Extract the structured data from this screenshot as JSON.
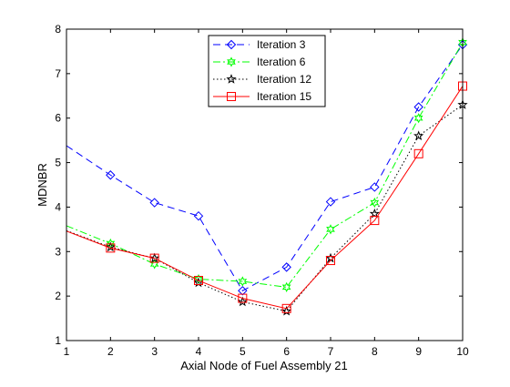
{
  "chart_data": {
    "type": "line",
    "title": "",
    "xlabel": "Axial Node of Fuel Assembly 21",
    "ylabel": "MDNBR",
    "xlim": [
      1,
      10
    ],
    "ylim": [
      1,
      8
    ],
    "xticks": [
      "1",
      "2",
      "3",
      "4",
      "5",
      "6",
      "7",
      "8",
      "9",
      "10"
    ],
    "yticks": [
      "1",
      "2",
      "3",
      "4",
      "5",
      "6",
      "7",
      "8"
    ],
    "grid": false,
    "legend_position": "top-center",
    "x": [
      1,
      2,
      3,
      4,
      5,
      6,
      7,
      8,
      9,
      10
    ],
    "series": [
      {
        "name": "Iteration 3",
        "values": [
          5.38,
          4.72,
          4.1,
          3.8,
          2.12,
          2.65,
          4.12,
          4.45,
          6.25,
          7.65
        ],
        "color": "#0000ff",
        "line_style": "dashed",
        "marker": "diamond",
        "marker_from": 1
      },
      {
        "name": "Iteration 6",
        "values": [
          3.58,
          3.18,
          2.72,
          2.38,
          2.33,
          2.2,
          3.5,
          4.1,
          6.0,
          7.7
        ],
        "color": "#00ff00",
        "line_style": "dash-dot",
        "marker": "hexagram",
        "marker_from": 1
      },
      {
        "name": "Iteration 12",
        "values": [
          3.47,
          3.1,
          2.85,
          2.3,
          1.87,
          1.66,
          2.85,
          3.85,
          5.6,
          6.3
        ],
        "color": "#000000",
        "line_style": "dotted",
        "marker": "pentagram",
        "marker_from": 1
      },
      {
        "name": "Iteration 15",
        "values": [
          3.46,
          3.08,
          2.85,
          2.35,
          1.95,
          1.72,
          2.8,
          3.7,
          5.2,
          6.72
        ],
        "color": "#ff0000",
        "line_style": "solid",
        "marker": "square",
        "marker_from": 1
      }
    ]
  }
}
